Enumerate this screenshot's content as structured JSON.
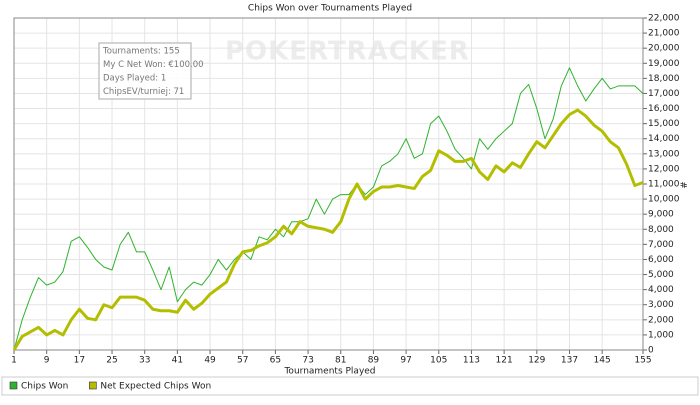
{
  "chart_data": {
    "type": "line",
    "title": "Chips Won over Tournaments Played",
    "x_label": "Tournaments Played",
    "y_label": "#",
    "watermark": "POKERTRACKER",
    "tooltip": [
      "Tournaments: 155",
      "My C Net Won: €100.00",
      "Days Played: 1",
      "ChipsEV/turniej: 71"
    ],
    "x": [
      1,
      3,
      5,
      7,
      9,
      11,
      13,
      15,
      17,
      19,
      21,
      23,
      25,
      27,
      29,
      31,
      33,
      35,
      37,
      39,
      41,
      43,
      45,
      47,
      49,
      51,
      53,
      55,
      57,
      59,
      61,
      63,
      65,
      67,
      69,
      71,
      73,
      75,
      77,
      79,
      81,
      83,
      85,
      87,
      89,
      91,
      93,
      95,
      97,
      99,
      101,
      103,
      105,
      107,
      109,
      111,
      113,
      115,
      117,
      119,
      121,
      123,
      125,
      127,
      129,
      131,
      133,
      135,
      137,
      139,
      141,
      143,
      145,
      147,
      149,
      151,
      153,
      155
    ],
    "series": [
      {
        "name": "Chips Won",
        "color": "#2db32d",
        "width": 1,
        "values": [
          0,
          2000,
          3500,
          4800,
          4300,
          4500,
          5200,
          7200,
          7500,
          6800,
          6000,
          5500,
          5300,
          7000,
          7800,
          6500,
          6500,
          5300,
          4000,
          5500,
          3200,
          4000,
          4500,
          4300,
          5000,
          6000,
          5300,
          6000,
          6500,
          6000,
          7500,
          7300,
          8000,
          7500,
          8500,
          8500,
          8700,
          10000,
          9000,
          10000,
          10300,
          10300,
          11000,
          10300,
          10800,
          12200,
          12500,
          13000,
          14000,
          12700,
          13000,
          15000,
          15500,
          14500,
          13300,
          12700,
          12000,
          14000,
          13300,
          14000,
          14500,
          15000,
          17000,
          17600,
          16000,
          14000,
          15300,
          17500,
          18700,
          17500,
          16500,
          17300,
          18000,
          17300,
          17500,
          17500,
          17500,
          17000
        ]
      },
      {
        "name": "Net Expected Chips Won",
        "color": "#b4be00",
        "width": 3,
        "values": [
          0,
          900,
          1200,
          1500,
          1000,
          1300,
          1000,
          2000,
          2700,
          2100,
          2000,
          3000,
          2800,
          3500,
          3500,
          3500,
          3300,
          2700,
          2600,
          2600,
          2500,
          3300,
          2700,
          3100,
          3700,
          4100,
          4500,
          5700,
          6500,
          6600,
          6900,
          7100,
          7500,
          8200,
          7700,
          8500,
          8200,
          8100,
          8000,
          7800,
          8500,
          10000,
          11000,
          10000,
          10500,
          10800,
          10800,
          10900,
          10800,
          10700,
          11500,
          11900,
          13200,
          12900,
          12500,
          12500,
          12700,
          11800,
          11300,
          12200,
          11800,
          12400,
          12100,
          13000,
          13800,
          13400,
          14200,
          15000,
          15600,
          15900,
          15500,
          14900,
          14500,
          13800,
          13400,
          12300,
          10900,
          11100
        ]
      }
    ],
    "xlim": [
      1,
      155
    ],
    "xticks": [
      1,
      9,
      17,
      25,
      33,
      41,
      49,
      57,
      65,
      73,
      81,
      89,
      97,
      105,
      113,
      121,
      129,
      137,
      145,
      155
    ],
    "ylim": [
      0,
      22000
    ],
    "yticks": [
      0,
      {
        "value": 1000,
        "label": "1,000"
      },
      {
        "value": 2000,
        "label": "2,000"
      },
      {
        "value": 3000,
        "label": "3,000"
      },
      {
        "value": 4000,
        "label": "4,000"
      },
      {
        "value": 5000,
        "label": "5,000"
      },
      {
        "value": 6000,
        "label": "6,000"
      },
      {
        "value": 7000,
        "label": "7,000"
      },
      {
        "value": 8000,
        "label": "8,000"
      },
      {
        "value": 9000,
        "label": "9,000"
      },
      {
        "value": 10000,
        "label": "10,000"
      },
      {
        "value": 11000,
        "label": "11,000"
      },
      {
        "value": 12000,
        "label": "12,000"
      },
      {
        "value": 13000,
        "label": "13,000"
      },
      {
        "value": 14000,
        "label": "14,000"
      },
      {
        "value": 15000,
        "label": "15,000"
      },
      {
        "value": 16000,
        "label": "16,000"
      },
      {
        "value": 17000,
        "label": "17,000"
      },
      {
        "value": 18000,
        "label": "18,000"
      },
      {
        "value": 19000,
        "label": "19,000"
      },
      {
        "value": 20000,
        "label": "20,000"
      },
      {
        "value": 21000,
        "label": "21,000"
      },
      {
        "value": 22000,
        "label": "22,000"
      }
    ],
    "grid": true
  }
}
